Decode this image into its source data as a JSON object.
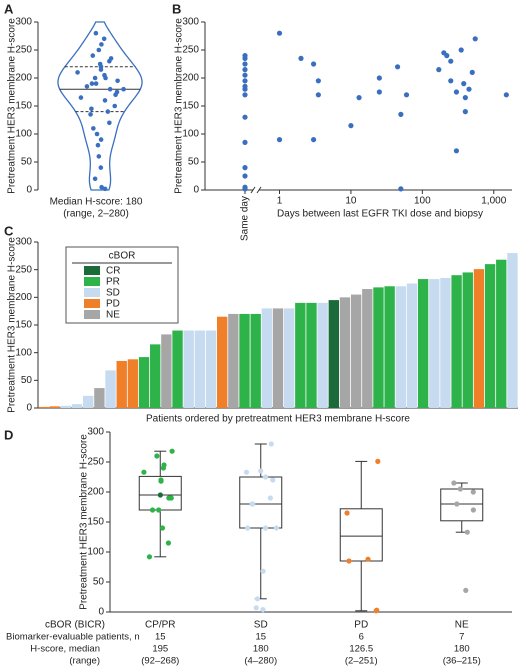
{
  "chart_data": [
    {
      "type": "violin",
      "panel": "A",
      "ylabel": "Pretreatment HER3 membrane H-score",
      "values": [
        280,
        270,
        260,
        250,
        240,
        235,
        230,
        225,
        220,
        215,
        210,
        205,
        200,
        200,
        195,
        190,
        190,
        185,
        180,
        180,
        175,
        170,
        165,
        160,
        150,
        145,
        140,
        135,
        120,
        110,
        100,
        90,
        80,
        60,
        40,
        20,
        5,
        2
      ],
      "median": 180,
      "quartiles": [
        140,
        220
      ],
      "caption": [
        "Median H-score: 180",
        "(range, 2–280)"
      ],
      "color": "#3a6fc0",
      "ylim": [
        0,
        300
      ],
      "yticks": [
        0,
        50,
        100,
        150,
        200,
        250,
        300
      ]
    },
    {
      "type": "scatter",
      "panel": "B",
      "ylabel": "Pretreatment HER3 membrane H-score",
      "xlabel": "Days between last EGFR TKI dose and biopsy",
      "category": "Same day",
      "category_values": [
        240,
        235,
        225,
        215,
        205,
        195,
        185,
        180,
        170,
        130,
        85,
        40,
        25,
        5,
        2
      ],
      "x": [
        1,
        1,
        2,
        3,
        3,
        3.5,
        3.5,
        10,
        13,
        25,
        25,
        45,
        50,
        50,
        60,
        170,
        200,
        220,
        250,
        250,
        300,
        300,
        350,
        380,
        400,
        400,
        450,
        500,
        550,
        1500
      ],
      "values": [
        280,
        90,
        235,
        225,
        90,
        195,
        170,
        115,
        165,
        200,
        175,
        220,
        135,
        2,
        170,
        215,
        245,
        240,
        195,
        230,
        175,
        70,
        250,
        190,
        165,
        140,
        180,
        210,
        270,
        170
      ],
      "xscale": "log",
      "xlim": [
        0.5,
        1800
      ],
      "xticks": [
        1,
        10,
        100,
        {
          "value": 1000,
          "label": "1,000"
        }
      ],
      "color": "#3a6fc0",
      "ylim": [
        0,
        300
      ],
      "yticks": [
        0,
        50,
        100,
        150,
        200,
        250,
        300
      ]
    },
    {
      "type": "bar",
      "panel": "C",
      "ylabel": "Pretreatment HER3 membrane H-score",
      "xlabel": "Patients ordered by pretreatment HER3 membrane H-score",
      "legend_title": "cBOR",
      "series": [
        {
          "name": "CR",
          "color": "#1b6b3a"
        },
        {
          "name": "PR",
          "color": "#2db34a"
        },
        {
          "name": "SD",
          "color": "#c6dbef"
        },
        {
          "name": "PD",
          "color": "#f07f2a"
        },
        {
          "name": "NE",
          "color": "#a6a6a6"
        }
      ],
      "values": [
        2,
        3,
        4,
        7,
        22,
        36,
        68,
        85,
        88,
        92,
        115,
        133,
        140,
        140,
        140,
        140,
        165,
        170,
        170,
        170,
        180,
        180,
        180,
        190,
        190,
        190,
        195,
        200,
        205,
        215,
        218,
        220,
        220,
        225,
        233,
        233,
        235,
        240,
        245,
        251,
        260,
        268,
        280
      ],
      "groups": [
        "PD",
        "PD",
        "SD",
        "SD",
        "SD",
        "NE",
        "SD",
        "PD",
        "PD",
        "PR",
        "PR",
        "NE",
        "PR",
        "SD",
        "SD",
        "SD",
        "PD",
        "NE",
        "PR",
        "PR",
        "SD",
        "NE",
        "SD",
        "PR",
        "PR",
        "SD",
        "CR",
        "NE",
        "NE",
        "NE",
        "PR",
        "PR",
        "SD",
        "SD",
        "PR",
        "SD",
        "SD",
        "PR",
        "PR",
        "PD",
        "PR",
        "PR",
        "SD"
      ],
      "ylim": [
        0,
        300
      ],
      "yticks": [
        0,
        50,
        100,
        150,
        200,
        250,
        300
      ]
    },
    {
      "type": "box",
      "panel": "D",
      "ylabel": "Pretreatment HER3 membrane H-score",
      "category_title": "cBOR (BICR)",
      "categories": [
        "CP/PR",
        "SD",
        "PD",
        "NE"
      ],
      "boxes": [
        {
          "whisker": [
            92,
            268
          ],
          "quartiles": [
            170,
            226
          ],
          "median": 195,
          "points": [
            92,
            115,
            140,
            170,
            170,
            190,
            190,
            195,
            218,
            220,
            233,
            240,
            245,
            260,
            268
          ],
          "point_groups": [
            "PR",
            "PR",
            "PR",
            "PR",
            "PR",
            "PR",
            "PR",
            "CR",
            "PR",
            "PR",
            "PR",
            "PR",
            "PR",
            "PR",
            "PR"
          ]
        },
        {
          "whisker": [
            22,
            280
          ],
          "quartiles": [
            140,
            225
          ],
          "median": 180,
          "points": [
            4,
            7,
            22,
            68,
            140,
            140,
            140,
            180,
            180,
            190,
            220,
            225,
            233,
            235,
            280
          ],
          "point_groups": [
            "SD",
            "SD",
            "SD",
            "SD",
            "SD",
            "SD",
            "SD",
            "SD",
            "SD",
            "SD",
            "SD",
            "SD",
            "SD",
            "SD",
            "SD"
          ]
        },
        {
          "whisker": [
            2,
            251
          ],
          "quartiles": [
            85,
            172
          ],
          "median": 126.5,
          "points": [
            2,
            3,
            85,
            88,
            165,
            251
          ],
          "point_groups": [
            "PD",
            "PD",
            "PD",
            "PD",
            "PD",
            "PD"
          ]
        },
        {
          "whisker": [
            133,
            215
          ],
          "quartiles": [
            152,
            205
          ],
          "median": 180,
          "points": [
            36,
            133,
            170,
            180,
            200,
            205,
            215
          ],
          "point_groups": [
            "NE",
            "NE",
            "NE",
            "NE",
            "NE",
            "NE",
            "NE"
          ]
        }
      ],
      "table": {
        "n_label": "Biomarker-evaluable patients, n",
        "n": [
          15,
          15,
          6,
          7
        ],
        "median_label": "H-score, median",
        "range_label": "(range)",
        "medians": [
          195,
          180,
          126.5,
          180
        ],
        "ranges": [
          "(92–268)",
          "(4–280)",
          "(2–251)",
          "(36–215)"
        ]
      },
      "ylim": [
        0,
        300
      ],
      "yticks": [
        0,
        50,
        100,
        150,
        200,
        250,
        300
      ]
    }
  ]
}
